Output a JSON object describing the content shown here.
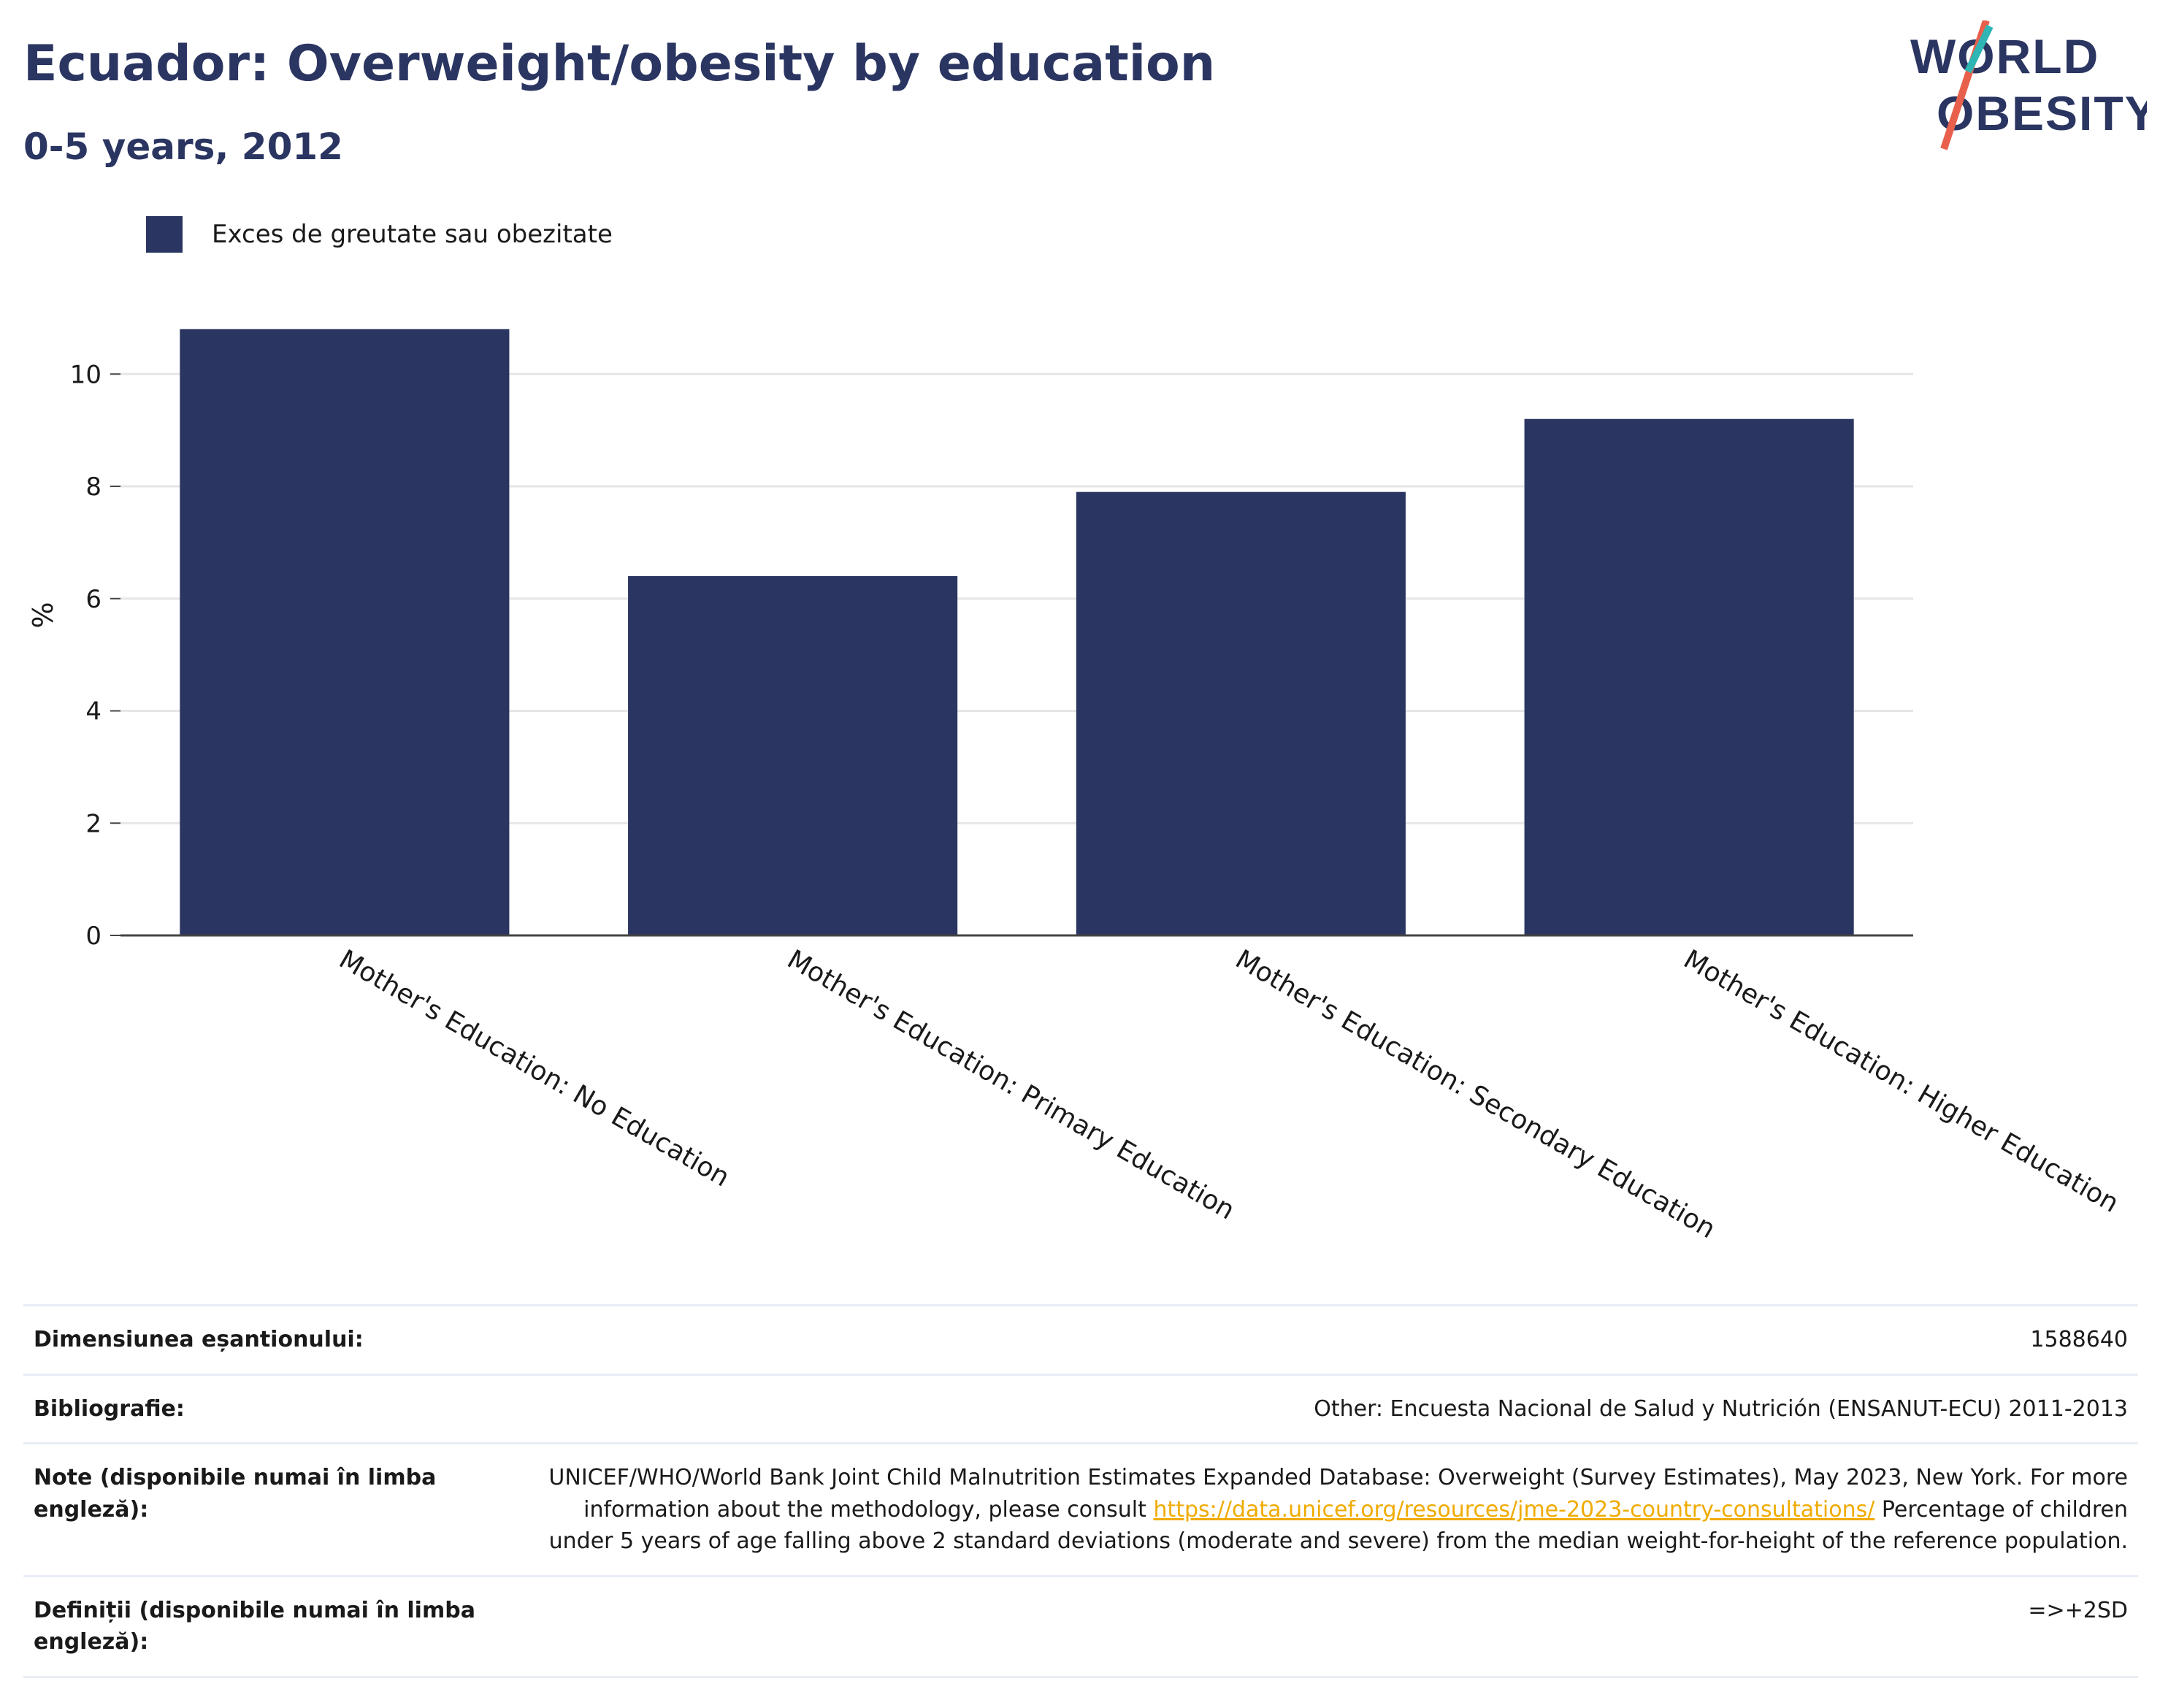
{
  "header": {
    "title": "Ecuador: Overweight/obesity by education",
    "subtitle": "0-5 years, 2012"
  },
  "logo": {
    "line1": "WORLD",
    "line2": "OBESITY"
  },
  "colors": {
    "bar": "#2a3561",
    "title": "#2a3561",
    "link": "#f0ab00",
    "logo_teal": "#2fb5b3",
    "logo_red": "#e8604c"
  },
  "chart_data": {
    "type": "bar",
    "categories": [
      "Mother's Education: No Education",
      "Mother's Education: Primary Education",
      "Mother's Education: Secondary Education",
      "Mother's Education: Higher Education"
    ],
    "series": [
      {
        "name": "Exces de greutate sau obezitate",
        "values": [
          10.8,
          6.4,
          7.9,
          9.2
        ]
      }
    ],
    "ylabel": "%",
    "yticks": [
      0,
      2,
      4,
      6,
      8,
      10
    ],
    "ylim": [
      0,
      11.2
    ],
    "grid": true,
    "legend": "top-left"
  },
  "meta": {
    "sample_label": "Dimensiunea eșantionului:",
    "sample_value": "1588640",
    "bib_label": "Bibliografie:",
    "bib_value": "Other: Encuesta Nacional de Salud y Nutrición (ENSANUT-ECU) 2011-2013",
    "notes_label": "Note (disponibile numai în limba engleză):",
    "notes_text_1": "UNICEF/WHO/World Bank Joint Child Malnutrition Estimates Expanded Database: Overweight (Survey Estimates), May 2023, New York. For more information about the methodology, please consult ",
    "notes_link": "https://data.unicef.org/resources/jme-2023-country-consultations/",
    "notes_text_2": " Percentage of children under 5 years of age falling above 2 standard deviations (moderate and severe) from the median weight-for-height of the reference population.",
    "def_label": "Definiții (disponibile numai în limba engleză):",
    "def_value": "=>+2SD"
  }
}
